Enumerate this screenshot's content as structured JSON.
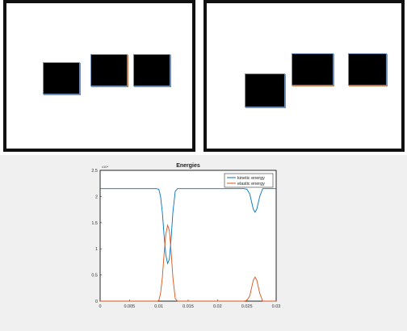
{
  "chart_data": {
    "type": "line",
    "title": "Energies",
    "xlabel": "",
    "ylabel": "",
    "xlim": [
      0,
      0.03
    ],
    "ylim": [
      0,
      2.5
    ],
    "y_multiplier": "x10⁴",
    "x_ticks": [
      "0",
      "0.005",
      "0.01",
      "0.015",
      "0.02",
      "0.025",
      "0.03"
    ],
    "y_ticks": [
      "0",
      "0.5",
      "1",
      "1.5",
      "2",
      "2.5"
    ],
    "legend_position": "top-right",
    "series": [
      {
        "name": "kinetic energy",
        "color": "#0072bd",
        "x": [
          0,
          0.0095,
          0.01,
          0.0103,
          0.0106,
          0.0109,
          0.0112,
          0.0115,
          0.0118,
          0.0121,
          0.0124,
          0.0128,
          0.0132,
          0.0245,
          0.025,
          0.0255,
          0.0258,
          0.0261,
          0.0264,
          0.0267,
          0.0272,
          0.0277,
          0.03
        ],
        "y": [
          2.15,
          2.15,
          2.14,
          2.0,
          1.7,
          1.25,
          0.88,
          0.72,
          0.8,
          1.2,
          1.7,
          2.1,
          2.15,
          2.15,
          2.14,
          2.05,
          1.9,
          1.76,
          1.7,
          1.76,
          2.0,
          2.15,
          2.15
        ]
      },
      {
        "name": "elastic energy",
        "color": "#d95319",
        "x": [
          0,
          0.0097,
          0.01,
          0.0103,
          0.0106,
          0.0109,
          0.0112,
          0.0115,
          0.0118,
          0.0121,
          0.0124,
          0.0128,
          0.0132,
          0.0245,
          0.025,
          0.0255,
          0.0258,
          0.0261,
          0.0264,
          0.0267,
          0.0272,
          0.0277,
          0.03
        ],
        "y": [
          0,
          0,
          0.01,
          0.15,
          0.45,
          0.9,
          1.28,
          1.45,
          1.35,
          0.95,
          0.45,
          0.05,
          0,
          0,
          0.01,
          0.1,
          0.25,
          0.4,
          0.46,
          0.4,
          0.15,
          0,
          0
        ]
      }
    ]
  }
}
